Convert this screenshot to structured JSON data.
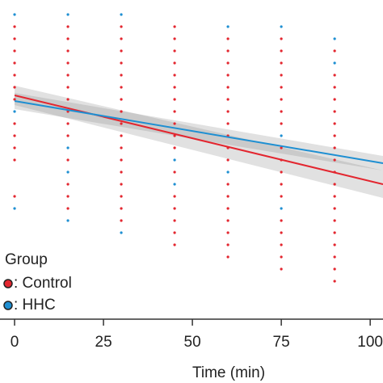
{
  "chart_data": {
    "type": "scatter",
    "xlabel": "Time (min)",
    "legend_title": "Group",
    "xlim": [
      -4.1,
      103.6
    ],
    "ylim": [
      0,
      395
    ],
    "xticks": [
      0,
      25,
      50,
      75,
      100
    ],
    "series": [
      {
        "name": ": Control",
        "color": "#e3262f",
        "x": [
          0,
          0,
          0,
          0,
          0,
          0,
          0,
          0,
          0,
          0,
          0,
          0,
          15,
          15,
          15,
          15,
          15,
          15,
          15,
          15,
          15,
          15,
          15,
          15,
          15,
          15,
          30,
          30,
          30,
          30,
          30,
          30,
          30,
          30,
          30,
          30,
          30,
          30,
          30,
          30,
          30,
          30,
          30,
          45,
          45,
          45,
          45,
          45,
          45,
          45,
          45,
          45,
          45,
          45,
          45,
          45,
          45,
          45,
          45,
          45,
          60,
          60,
          60,
          60,
          60,
          60,
          60,
          60,
          60,
          60,
          60,
          60,
          60,
          60,
          60,
          60,
          60,
          60,
          75,
          75,
          75,
          75,
          75,
          75,
          75,
          75,
          75,
          75,
          75,
          75,
          75,
          75,
          75,
          75,
          75,
          75,
          90,
          90,
          90,
          90,
          90,
          90,
          90,
          90,
          90,
          90,
          90,
          90,
          90,
          90,
          90,
          90,
          90,
          90,
          90
        ],
        "y": [
          362,
          347,
          332,
          317,
          302,
          287,
          272,
          242,
          227,
          212,
          197,
          152,
          362,
          347,
          332,
          317,
          302,
          287,
          272,
          257,
          242,
          227,
          197,
          167,
          152,
          137,
          362,
          347,
          332,
          317,
          302,
          287,
          272,
          257,
          242,
          227,
          212,
          197,
          182,
          167,
          152,
          137,
          122,
          362,
          347,
          332,
          317,
          302,
          287,
          272,
          257,
          242,
          227,
          212,
          182,
          152,
          137,
          122,
          107,
          92,
          347,
          332,
          317,
          302,
          287,
          272,
          257,
          242,
          227,
          212,
          197,
          167,
          152,
          137,
          122,
          107,
          92,
          77,
          347,
          332,
          317,
          302,
          287,
          272,
          257,
          242,
          212,
          197,
          182,
          167,
          152,
          122,
          107,
          92,
          77,
          62,
          332,
          302,
          287,
          272,
          257,
          242,
          227,
          212,
          197,
          182,
          167,
          152,
          137,
          122,
          107,
          92,
          77,
          62,
          47
        ]
      },
      {
        "name": ": HHC",
        "color": "#1e8fd2",
        "x": [
          0,
          0,
          0,
          15,
          15,
          15,
          15,
          30,
          30,
          45,
          45,
          60,
          60,
          75,
          75,
          75,
          90,
          90
        ],
        "y": [
          377,
          257,
          137,
          377,
          212,
          182,
          122,
          377,
          107,
          197,
          167,
          362,
          182,
          362,
          227,
          137,
          347,
          317
        ]
      }
    ],
    "fits": [
      {
        "color": "#e3262f",
        "x": [
          0,
          103.6
        ],
        "y": [
          277,
          167
        ],
        "lower": [
          265,
          150
        ],
        "upper": [
          289,
          184
        ]
      },
      {
        "color": "#1e8fd2",
        "x": [
          0,
          103.6
        ],
        "y": [
          270,
          193
        ],
        "lower": [
          260,
          184
        ],
        "upper": [
          280,
          202
        ]
      }
    ]
  }
}
